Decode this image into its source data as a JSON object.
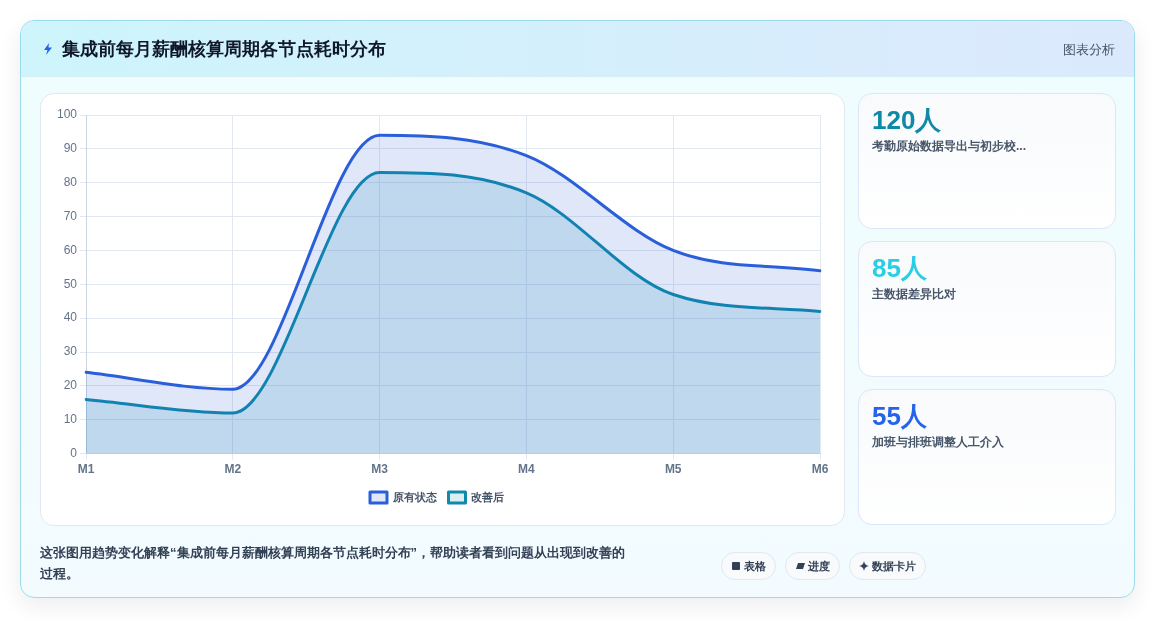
{
  "chart_data": [
    {
      "type": "area",
      "title": "集成前每月薪酬核算周期各节点耗时分布",
      "categories": [
        "M1",
        "M2",
        "M3",
        "M4",
        "M5",
        "M6"
      ],
      "series": [
        {
          "name": "原有状态",
          "color": "#2b5fd9",
          "values": [
            24,
            19,
            94,
            88,
            60,
            54
          ]
        },
        {
          "name": "改善后",
          "color": "#0f8aab",
          "values": [
            16,
            12,
            83,
            77,
            47,
            42
          ]
        }
      ],
      "ylim": [
        0,
        100
      ],
      "yticks": [
        0,
        10,
        20,
        30,
        40,
        50,
        60,
        70,
        80,
        90,
        100
      ],
      "grid": true,
      "legend": "bottom",
      "marker": "none",
      "line_style": "solid",
      "annotations": [
        "这张图用趋势变化解释“集成前每月薪酬核算周期各节点耗时分布”，帮助读者看到问题从出现到改善的过程。",
        "表格",
        "进度",
        "数据卡片"
      ]
    },
    {
      "type": "other",
      "title": "图表分析",
      "annotations": [
        "120人",
        "考勤原始数据导出与初步校...",
        "85人",
        "主数据差异比对",
        "55人",
        "加班与排班调整人工介入"
      ]
    }
  ]
}
